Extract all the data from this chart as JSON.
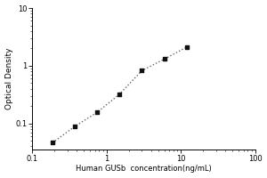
{
  "x_data": [
    0.188,
    0.375,
    0.75,
    1.5,
    3.0,
    6.0,
    12.0
  ],
  "y_data": [
    0.046,
    0.088,
    0.155,
    0.32,
    0.82,
    1.3,
    2.1
  ],
  "xlabel": "Human GUSb  concentration(ng/mL)",
  "ylabel": "Optical Density",
  "xlim": [
    0.1,
    100
  ],
  "ylim": [
    0.035,
    10
  ],
  "xticks": [
    0.1,
    1,
    10,
    100
  ],
  "yticks": [
    0.1,
    1,
    10
  ],
  "xtick_labels": [
    "0.1",
    "1",
    "10",
    "100"
  ],
  "ytick_labels": [
    "0.1",
    "1",
    "10"
  ],
  "marker_color": "#111111",
  "line_color": "#666666",
  "background_color": "#ffffff",
  "xlabel_fontsize": 6.0,
  "ylabel_fontsize": 6.5,
  "tick_fontsize": 6.0,
  "fig_width": 3.0,
  "fig_height": 2.0,
  "dpi": 100
}
